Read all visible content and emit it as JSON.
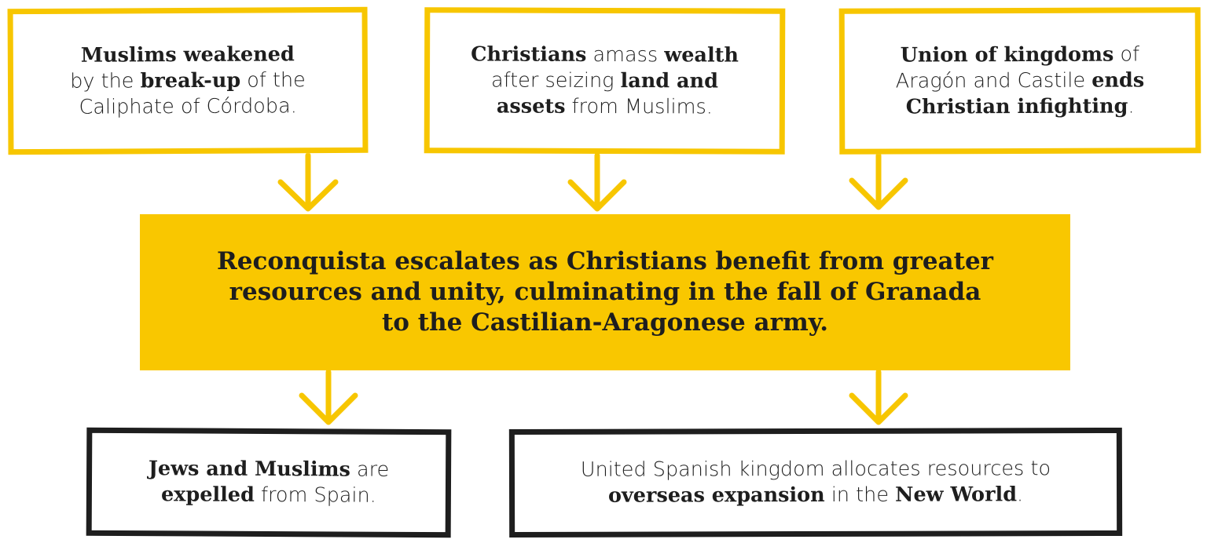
{
  "causes": [
    {
      "parts": [
        {
          "t": "Muslims weakened",
          "b": true
        },
        {
          "t": "by the ",
          "b": false
        },
        {
          "t": "break-up",
          "b": true
        },
        {
          "t": " of the Caliphate of Córdoba.",
          "b": false
        }
      ],
      "lines": [
        "<b>Muslims weakened</b>",
        "by the <b>break-up</b> of the",
        "Caliphate of Córdoba."
      ]
    },
    {
      "lines": [
        "<b>Christians</b> amass <b>wealth</b>",
        "after seizing <b>land and</b>",
        "<b>assets</b> from Muslims."
      ]
    },
    {
      "lines": [
        "<b>Union of kingdoms</b> of",
        "Aragón and Castile <b>ends</b>",
        "<b>Christian infighting</b>."
      ]
    }
  ],
  "central": {
    "lines": [
      "Reconquista escalates as Christians benefit from greater",
      "resources and unity, culminating in the fall of Granada",
      "to the Castilian-Aragonese army."
    ]
  },
  "effects": [
    {
      "lines": [
        "<b>Jews and Muslims</b> are",
        "<b>expelled</b> from Spain."
      ]
    },
    {
      "lines": [
        "United Spanish kingdom allocates resources to",
        "<b>overseas expansion</b> in the <b>New World</b>."
      ]
    }
  ],
  "colors": {
    "accent_yellow": "#f9c700",
    "dark_border": "#1e1e1e"
  }
}
